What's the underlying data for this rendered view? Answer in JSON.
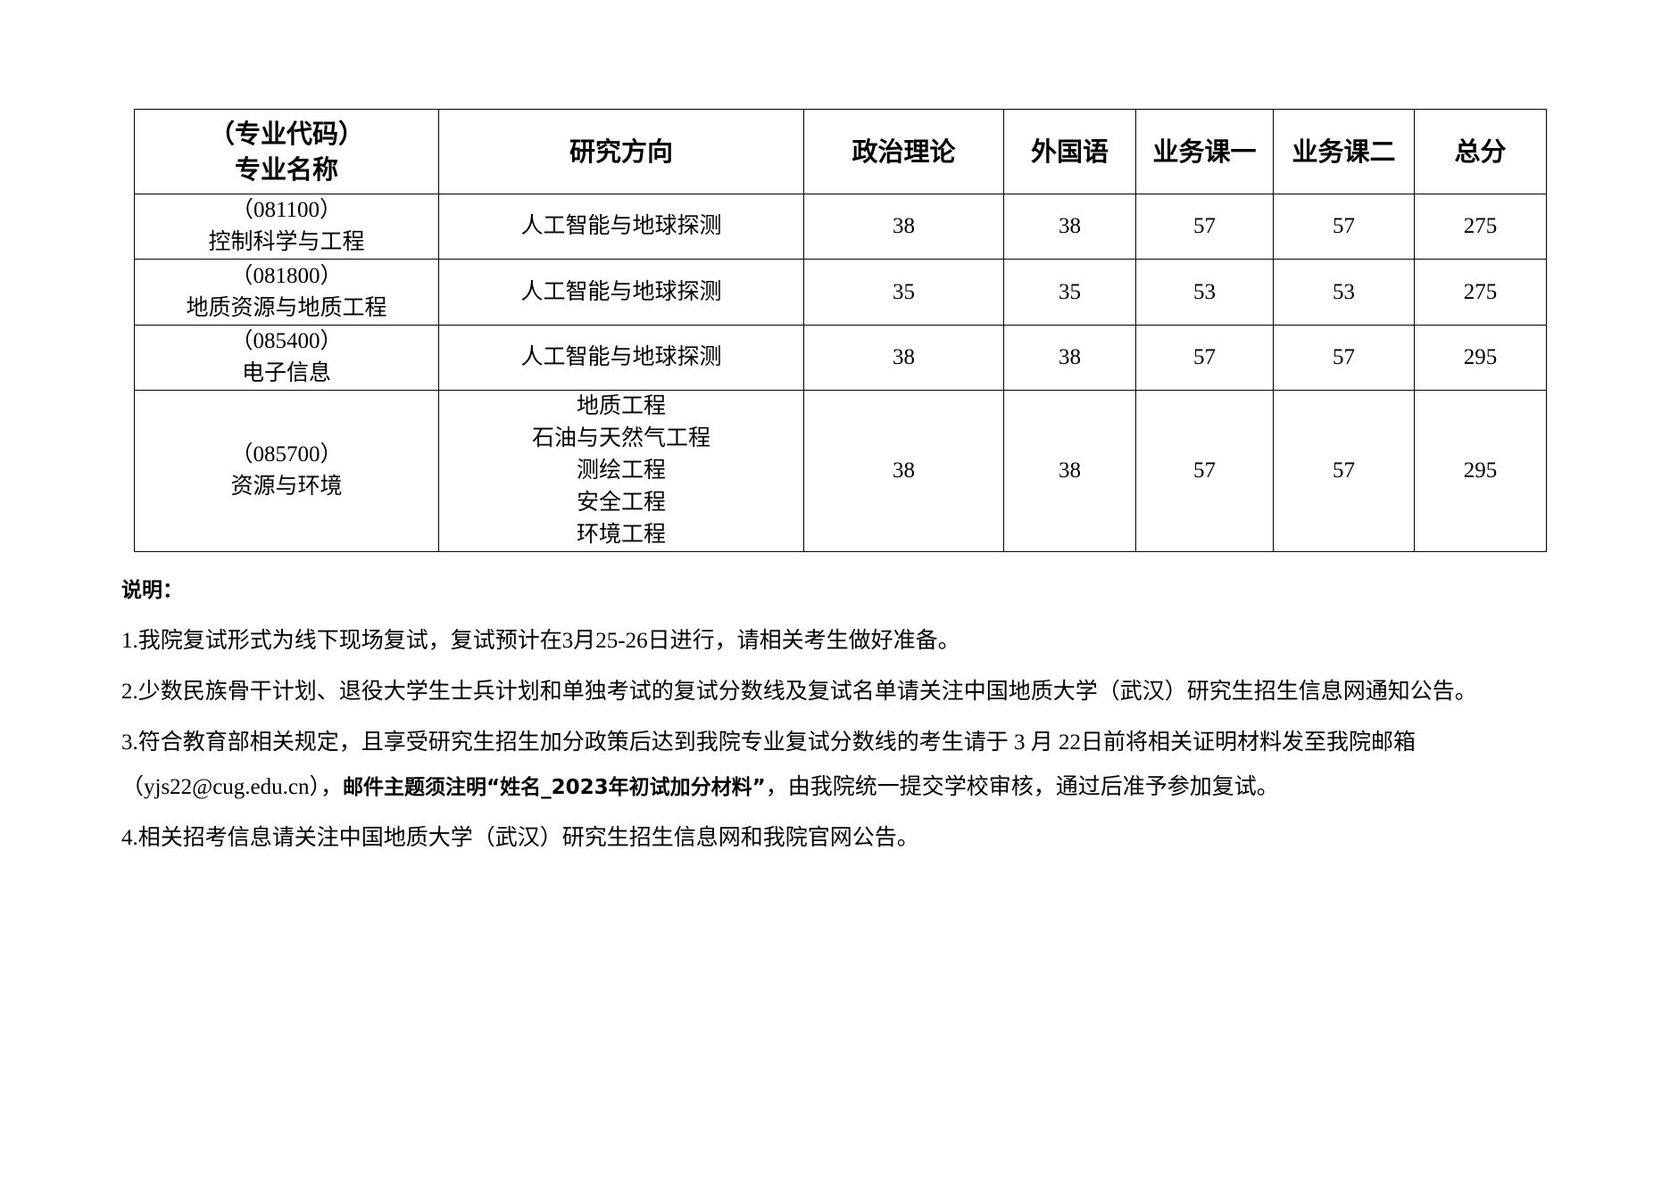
{
  "table": {
    "headers": [
      "（专业代码）",
      "专业名称",
      "研究方向",
      "政治理论",
      "外国语",
      "业务课一",
      "业务课二",
      "总分"
    ],
    "rows": [
      {
        "code": "（081100）",
        "name": "控制科学与工程",
        "directions": [
          "人工智能与地球探测"
        ],
        "politics": "38",
        "foreign": "38",
        "course1": "57",
        "course2": "57",
        "total": "275"
      },
      {
        "code": "（081800）",
        "name": "地质资源与地质工程",
        "directions": [
          "人工智能与地球探测"
        ],
        "politics": "35",
        "foreign": "35",
        "course1": "53",
        "course2": "53",
        "total": "275"
      },
      {
        "code": "（085400）",
        "name": "电子信息",
        "directions": [
          "人工智能与地球探测"
        ],
        "politics": "38",
        "foreign": "38",
        "course1": "57",
        "course2": "57",
        "total": "295"
      },
      {
        "code": "（085700）",
        "name": "资源与环境",
        "directions": [
          "地质工程",
          "石油与天然气工程",
          "测绘工程",
          "安全工程",
          "环境工程"
        ],
        "politics": "38",
        "foreign": "38",
        "course1": "57",
        "course2": "57",
        "total": "295"
      }
    ]
  },
  "notes": {
    "title": "说明：",
    "item1": "1.我院复试形式为线下现场复试，复试预计在3月25-26日进行，请相关考生做好准备。",
    "item2": "2.少数民族骨干计划、退役大学生士兵计划和单独考试的复试分数线及复试名单请关注中国地质大学（武汉）研究生招生信息网通知公告。",
    "item3_line1": "3.符合教育部相关规定，且享受研究生招生加分政策后达到我院专业复试分数线的考生请于 3 月 22日前将相关证明材料发至我院邮箱",
    "item3_line2_a": "（yjs22@cug.edu.cn），",
    "item3_line2_bold": "邮件主题须注明“姓名_2023年初试加分材料”",
    "item3_line2_c": "，由我院统一提交学校审核，通过后准予参加复试。",
    "item4": "4.相关招考信息请关注中国地质大学（武汉）研究生招生信息网和我院官网公告。"
  }
}
